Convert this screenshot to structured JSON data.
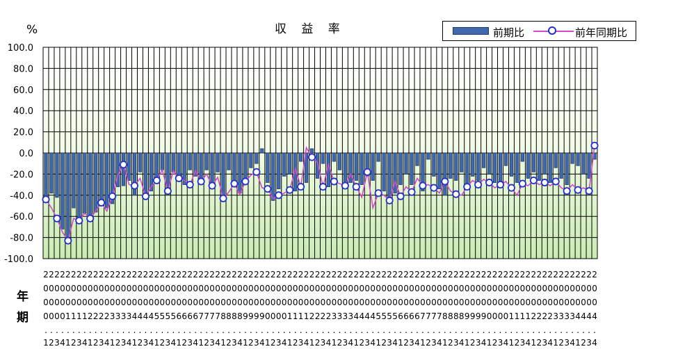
{
  "chart_data": {
    "type": "bar+line",
    "title": "収 益 率",
    "unit_label": "%",
    "row_labels": {
      "year": "年",
      "quarter": "期"
    },
    "ylim": [
      -100,
      100
    ],
    "yticks": [
      "100.0",
      "80.0",
      "60.0",
      "40.0",
      "20.0",
      "0.0",
      "-20.0",
      "-40.0",
      "-60.0",
      "-80.0",
      "-100.0"
    ],
    "grid": true,
    "legend_position": "top-right",
    "legend": [
      "前期比",
      "前年同期比"
    ],
    "categories": [
      "2000.1",
      "2000.2",
      "2000.3",
      "2000.4",
      "2001.1",
      "2001.2",
      "2001.3",
      "2001.4",
      "2002.1",
      "2002.2",
      "2002.3",
      "2002.4",
      "2003.1",
      "2003.2",
      "2003.3",
      "2003.4",
      "2004.1",
      "2004.2",
      "2004.3",
      "2004.4",
      "2005.1",
      "2005.2",
      "2005.3",
      "2005.4",
      "2006.1",
      "2006.2",
      "2006.3",
      "2006.4",
      "2007.1",
      "2007.2",
      "2007.3",
      "2007.4",
      "2008.1",
      "2008.2",
      "2008.3",
      "2008.4",
      "2009.1",
      "2009.2",
      "2009.3",
      "2009.4",
      "2010.1",
      "2010.2",
      "2010.3",
      "2010.4",
      "2011.1",
      "2011.2",
      "2011.3",
      "2011.4",
      "2012.1",
      "2012.2",
      "2012.3",
      "2012.4",
      "2013.1",
      "2013.2",
      "2013.3",
      "2013.4",
      "2014.1",
      "2014.2",
      "2014.3",
      "2014.4",
      "2015.1",
      "2015.2",
      "2015.3",
      "2015.4",
      "2016.1",
      "2016.2",
      "2016.3",
      "2016.4",
      "2017.1",
      "2017.2",
      "2017.3",
      "2017.4",
      "2018.1",
      "2018.2",
      "2018.3",
      "2018.4",
      "2019.1",
      "2019.2",
      "2019.3",
      "2019.4",
      "2020.1",
      "2020.2",
      "2020.3",
      "2020.4",
      "2021.1",
      "2021.2",
      "2021.3",
      "2021.4",
      "2022.1",
      "2022.2",
      "2022.3",
      "2022.4",
      "2023.1",
      "2023.2",
      "2023.3",
      "2023.4",
      "2024.1",
      "2024.2",
      "2024.3",
      "2024.4"
    ],
    "axis_rows": {
      "row1": "2222222222222222222222222222222222222222222222222222222222222222222222222222222222222222222222222222",
      "row2": "0000000000000000000000000000000000000000000000000000000000000000000000000000000000000000000000000000",
      "row3": "0000000000000000000000000000000000000000000000000000000000000000000000000000000000000000000000000000",
      "row4": "0000111122223333444455556666777788889999000011112222333344445555666677778888999900001111222233334444",
      "row5": "....................................................................................................",
      "row6": "1234123412341234123412341234123412341234123412341234123412341234123412341234123412341234123412341234"
    },
    "series": [
      {
        "name": "前期比",
        "type": "bar",
        "values": [
          -44,
          -38,
          -42,
          -72,
          -80,
          -52,
          -62,
          -57,
          -63,
          -56,
          -48,
          -52,
          -48,
          -32,
          -31,
          -26,
          -40,
          -18,
          -40,
          -36,
          -26,
          -16,
          -34,
          -18,
          -22,
          -30,
          -16,
          -22,
          -24,
          -16,
          -30,
          -18,
          -40,
          -16,
          -28,
          -38,
          -26,
          -14,
          -10,
          4,
          -28,
          -45,
          -34,
          -22,
          -20,
          -36,
          -8,
          -28,
          4,
          -24,
          -10,
          -32,
          -8,
          -16,
          -30,
          -28,
          -26,
          -30,
          -22,
          -26,
          -8,
          -36,
          -42,
          -38,
          -30,
          -20,
          -30,
          -12,
          -36,
          -6,
          -22,
          -34,
          -40,
          -24,
          -26,
          -18,
          -30,
          -22,
          -26,
          -14,
          -20,
          -28,
          -30,
          -12,
          -22,
          -28,
          -8,
          -24,
          -18,
          -26,
          -20,
          -28,
          -14,
          -24,
          -30,
          -10,
          -12,
          -20,
          -24,
          -6
        ]
      },
      {
        "name": "前年同期比",
        "type": "line",
        "values": [
          -44,
          -52,
          -62,
          -75,
          -83,
          -62,
          -64,
          -57,
          -62,
          -55,
          -47,
          -55,
          -41,
          -21,
          -11,
          -30,
          -31,
          -24,
          -41,
          -32,
          -26,
          -16,
          -36,
          -17,
          -24,
          -26,
          -30,
          -17,
          -27,
          -20,
          -31,
          -23,
          -43,
          -37,
          -29,
          -39,
          -27,
          -21,
          -18,
          -33,
          -34,
          -43,
          -40,
          -38,
          -35,
          -15,
          -32,
          5,
          -4,
          -9,
          -32,
          -11,
          -27,
          -29,
          -31,
          -20,
          -32,
          -42,
          -18,
          -52,
          -38,
          -40,
          -45,
          -27,
          -41,
          -32,
          -37,
          -24,
          -31,
          -30,
          -33,
          -38,
          -27,
          -36,
          -39,
          -40,
          -32,
          -26,
          -30,
          -25,
          -28,
          -33,
          -30,
          -27,
          -33,
          -40,
          -29,
          -31,
          -26,
          -30,
          -28,
          -31,
          -27,
          -33,
          -36,
          -30,
          -35,
          -33,
          -36,
          7
        ]
      }
    ]
  }
}
